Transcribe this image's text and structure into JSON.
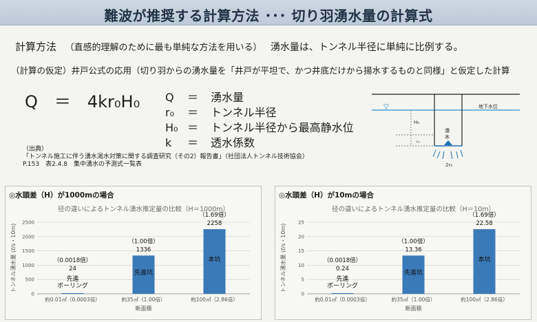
{
  "header": {
    "title": "難波が推奨する計算方法 ･･･ 切り羽湧水量の計算式"
  },
  "intro": {
    "lead": "計算方法",
    "paren": "（直感的理解のために最も単純な方法を用いる）",
    "text": "湧水量は、トンネル半径に単純に比例する。",
    "assumption": "（計算の仮定）井戸公式の応用（切り羽からの湧水量を「井戸が平坦で、かつ井底だけから揚水するものと同様」と仮定した計算"
  },
  "formula": {
    "equation": "Q　＝　4kr₀H₀",
    "definitions": [
      {
        "symbol": "Q",
        "eq": "＝",
        "meaning": "湧水量"
      },
      {
        "symbol": "r₀",
        "eq": "＝",
        "meaning": "トンネル半径"
      },
      {
        "symbol": "H₀",
        "eq": "＝",
        "meaning": "トンネル半径から最高静水位"
      },
      {
        "symbol": "k",
        "eq": "＝",
        "meaning": "透水係数"
      }
    ]
  },
  "source": {
    "label": "（出典）",
    "line1": "「トンネル施工に伴う湧水渇水対策に関する調査研究（その2）報告書」（社団法人トンネル技術協会）",
    "line2": "P.153　表2.4.8　集中湧水の予測式一覧表"
  },
  "diagram": {
    "groundwater_label": "地下水位",
    "h_label": "H₀",
    "r_label": "r₀",
    "spring_label_1": "湧",
    "spring_label_2": "水",
    "width_label": "2r₀",
    "water_symbol": "▽",
    "water_color": "#2a8fcf",
    "spring_color": "#1f6fb2"
  },
  "panels": [
    {
      "heading": "◎水頭差（H）が1000mの場合",
      "chart_data": {
        "type": "bar",
        "title": "径の違いによるトンネル湧水推定量の比較（H＝1000m）",
        "ylabel": "トンネル湧水量 (ℓ/s・10m)",
        "xlabel": "断面積",
        "ylim": [
          0,
          2500
        ],
        "yticks": [
          "0",
          "500",
          "1000",
          "1500",
          "2000",
          "2500"
        ],
        "categories": [
          "約0.01㎡（0.0003倍）",
          "約35㎡（1.00倍）",
          "約100㎡（2.86倍）"
        ],
        "values": [
          24,
          1336,
          2258
        ],
        "value_labels": [
          "24",
          "1336",
          "2258"
        ],
        "ratio_labels": [
          "（0.0018倍）",
          "（1.00倍）",
          "（1.69倍）"
        ],
        "bar_labels": [
          "先進\nボーリング",
          "先進坑",
          "本坑"
        ],
        "bar_color": "#3a7ab8"
      }
    },
    {
      "heading": "◎水頭差（H）が10mの場合",
      "chart_data": {
        "type": "bar",
        "title": "径の違いによるトンネル湧水推定量の比較（H＝10m）",
        "ylabel": "トンネル湧水量 (ℓ/s・10m)",
        "xlabel": "断面積",
        "ylim": [
          0,
          25
        ],
        "yticks": [
          "0",
          "5",
          "10",
          "15",
          "20",
          "25"
        ],
        "categories": [
          "約0.01㎡（0.0003倍）",
          "約35㎡（1.00倍）",
          "約100㎡（2.86倍）"
        ],
        "values": [
          0.24,
          13.36,
          22.58
        ],
        "value_labels": [
          "0.24",
          "13.36",
          "22.58"
        ],
        "ratio_labels": [
          "（0.0018倍）",
          "（1.00倍）",
          "（1.69倍）"
        ],
        "bar_labels": [
          "先進\nボーリング",
          "先進坑",
          "本坑"
        ],
        "bar_color": "#3a7ab8"
      }
    }
  ]
}
